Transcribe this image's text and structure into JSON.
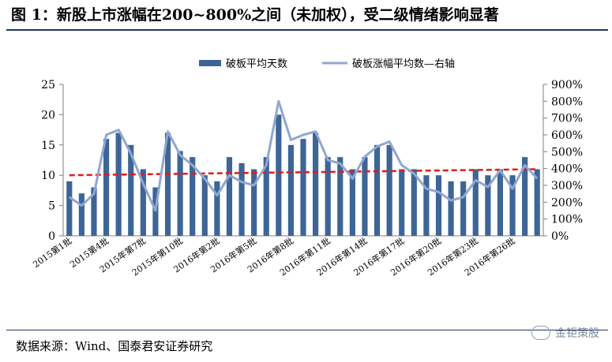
{
  "title": "图 1：新股上市涨幅在200~800%之间（未加权），受二级情绪影响显著",
  "source": "数据来源：Wind、国泰君安证券研究",
  "watermark": "金钜策股",
  "colors": {
    "bar": "#3d6596",
    "line": "#91a7d0",
    "trend": "#e31a1c"
  },
  "chart_data": {
    "type": "bar",
    "legend": [
      "破板平均天数",
      "破板涨幅平均数—右轴"
    ],
    "legend_position": "top",
    "grid": false,
    "x_labels": [
      "2015第1批",
      "2015第4批",
      "2015年第7批",
      "2015年第10批",
      "2016年第2批",
      "2016年第5批",
      "2016年第8批",
      "2016年第11批",
      "2016年第14批",
      "2016年第17批",
      "2016年第20批",
      "2016年第23批",
      "2016年第26批"
    ],
    "y_left": {
      "ylim": [
        0,
        25
      ],
      "ticks": [
        "0",
        "5",
        "10",
        "15",
        "20",
        "25"
      ]
    },
    "y_right": {
      "ylim": [
        0,
        900
      ],
      "ticks": [
        "0%",
        "100%",
        "200%",
        "300%",
        "400%",
        "500%",
        "600%",
        "700%",
        "800%",
        "900%"
      ]
    },
    "series": [
      {
        "name": "破板平均天数",
        "type": "bar",
        "axis": "left",
        "values": [
          9,
          7,
          8,
          16,
          17,
          15,
          11,
          8,
          17,
          14,
          13,
          10,
          9,
          13,
          12,
          11,
          13,
          20,
          15,
          16,
          17,
          13,
          13,
          11,
          13,
          15,
          15,
          11,
          11,
          10,
          10,
          9,
          9,
          11,
          10,
          11,
          10,
          13,
          11
        ]
      },
      {
        "name": "破板涨幅平均数—右轴",
        "type": "line",
        "axis": "right",
        "values": [
          230,
          180,
          250,
          600,
          630,
          490,
          310,
          150,
          620,
          480,
          420,
          340,
          240,
          360,
          320,
          300,
          420,
          800,
          570,
          600,
          620,
          450,
          430,
          340,
          470,
          530,
          560,
          420,
          370,
          280,
          260,
          210,
          230,
          330,
          290,
          390,
          280,
          420,
          340
        ]
      }
    ],
    "trend": {
      "style": "dashed",
      "axis": "left",
      "start": 10,
      "end": 11
    }
  }
}
